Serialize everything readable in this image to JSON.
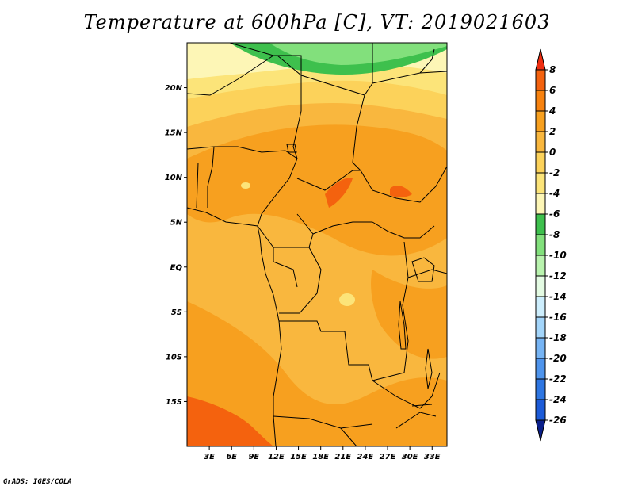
{
  "title": "Temperature at 600hPa [C], VT: 2019021603",
  "footer": "GrADS: IGES/COLA",
  "colors": {
    "dark_red": "#ee2d10",
    "red_orange": "#f4620e",
    "orange": "#f7a01f",
    "light_orange": "#f9b73e",
    "yellow": "#fce479",
    "pale_yellow": "#fdf6b6",
    "green": "#3ec04d",
    "light_green": "#82e07c",
    "pale_green": "#b9f3ae",
    "mint": "#e4fbe3",
    "pale_blue": "#cdeefd",
    "light_blue": "#a3d5fa",
    "blue3": "#76b4f4",
    "blue4": "#4e94ec",
    "blue5": "#2e76e2",
    "blue6": "#1c5bd8",
    "blue7": "#0f43c4",
    "blue8": "#0a2ba0",
    "navy": "#050d6e",
    "under": "#e3e3fb"
  },
  "chart_data": {
    "type": "heatmap",
    "title": "Temperature at 600hPa [C], VT: 2019021603",
    "variable": "Temperature",
    "level": "600hPa",
    "units": "C",
    "valid_time": "2019021603",
    "x_axis": {
      "range": [
        0,
        35
      ],
      "tick_labels": [
        "3E",
        "6E",
        "9E",
        "12E",
        "15E",
        "18E",
        "21E",
        "24E",
        "27E",
        "30E",
        "33E"
      ],
      "tick_values": [
        3,
        6,
        9,
        12,
        15,
        18,
        21,
        24,
        27,
        30,
        33
      ]
    },
    "y_axis": {
      "range": [
        -20,
        25
      ],
      "tick_labels": [
        "20N",
        "15N",
        "10N",
        "5N",
        "EQ",
        "5S",
        "10S",
        "15S"
      ],
      "tick_values": [
        20,
        15,
        10,
        5,
        0,
        -5,
        -10,
        -15
      ]
    },
    "colorbar": {
      "levels": [
        8,
        6,
        4,
        2,
        0,
        -2,
        -4,
        -6,
        -8,
        -10,
        -12,
        -14,
        -16,
        -18,
        -20,
        -22,
        -24,
        -26
      ],
      "level_labels": [
        "8",
        "6",
        "4",
        "2",
        "0",
        "-2",
        "-4",
        "-6",
        "-8",
        "-10",
        "-12",
        "-14",
        "-16",
        "-18",
        "-20",
        "-22",
        "-24",
        "-26"
      ],
      "bins": [
        {
          "range": [
            8,
            null
          ],
          "color": "#ee2d10"
        },
        {
          "range": [
            6,
            8
          ],
          "color": "#f4620e"
        },
        {
          "range": [
            4,
            6
          ],
          "color": "#f7820f"
        },
        {
          "range": [
            2,
            4
          ],
          "color": "#f7a01f"
        },
        {
          "range": [
            0,
            2
          ],
          "color": "#f9b73e"
        },
        {
          "range": [
            -2,
            0
          ],
          "color": "#fcd25a"
        },
        {
          "range": [
            -4,
            -2
          ],
          "color": "#fce479"
        },
        {
          "range": [
            -6,
            -4
          ],
          "color": "#fdf6b6"
        },
        {
          "range": [
            -8,
            -6
          ],
          "color": "#3ec04d"
        },
        {
          "range": [
            -10,
            -8
          ],
          "color": "#82e07c"
        },
        {
          "range": [
            -12,
            -10
          ],
          "color": "#b9f3ae"
        },
        {
          "range": [
            -14,
            -12
          ],
          "color": "#e4fbe3"
        },
        {
          "range": [
            -16,
            -14
          ],
          "color": "#cdeefd"
        },
        {
          "range": [
            -18,
            -16
          ],
          "color": "#a3d5fa"
        },
        {
          "range": [
            -20,
            -18
          ],
          "color": "#76b4f4"
        },
        {
          "range": [
            -22,
            -20
          ],
          "color": "#4e94ec"
        },
        {
          "range": [
            -24,
            -22
          ],
          "color": "#2e76e2"
        },
        {
          "range": [
            -26,
            -24
          ],
          "color": "#1c5bd8"
        },
        {
          "range": [
            null,
            -26
          ],
          "color": "#0a1f8a"
        }
      ]
    },
    "grid": false
  }
}
